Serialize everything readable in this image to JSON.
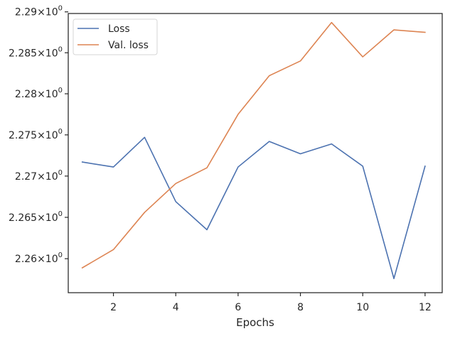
{
  "chart_data": {
    "type": "line",
    "title": "",
    "xlabel": "Epochs",
    "ylabel": "",
    "x": [
      1,
      2,
      3,
      4,
      5,
      6,
      7,
      8,
      9,
      10,
      11,
      12
    ],
    "xlim": [
      0.55,
      12.55
    ],
    "ylim": [
      2.2559,
      2.2898
    ],
    "yscale": "log",
    "grid": false,
    "legend_position": "top-left",
    "x_ticks": [
      {
        "value": 2,
        "label": "2"
      },
      {
        "value": 4,
        "label": "4"
      },
      {
        "value": 6,
        "label": "6"
      },
      {
        "value": 8,
        "label": "8"
      },
      {
        "value": 10,
        "label": "10"
      },
      {
        "value": 12,
        "label": "12"
      }
    ],
    "y_ticks": [
      {
        "value": 2.26,
        "mant": "2.26",
        "exp": "0"
      },
      {
        "value": 2.265,
        "mant": "2.265",
        "exp": "0"
      },
      {
        "value": 2.27,
        "mant": "2.27",
        "exp": "0"
      },
      {
        "value": 2.275,
        "mant": "2.275",
        "exp": "0"
      },
      {
        "value": 2.28,
        "mant": "2.28",
        "exp": "0"
      },
      {
        "value": 2.285,
        "mant": "2.285",
        "exp": "0"
      },
      {
        "value": 2.29,
        "mant": "2.29",
        "exp": "0"
      }
    ],
    "series": [
      {
        "name": "Loss",
        "color": "#4c72b0",
        "values": [
          2.2717,
          2.2711,
          2.2747,
          2.2669,
          2.2635,
          2.2711,
          2.2742,
          2.2727,
          2.2739,
          2.2712,
          2.2576,
          2.2712
        ]
      },
      {
        "name": "Val. loss",
        "color": "#dd8452",
        "values": [
          2.2589,
          2.2611,
          2.2656,
          2.2691,
          2.271,
          2.2775,
          2.2822,
          2.284,
          2.2887,
          2.2845,
          2.2878,
          2.2875
        ]
      }
    ]
  }
}
